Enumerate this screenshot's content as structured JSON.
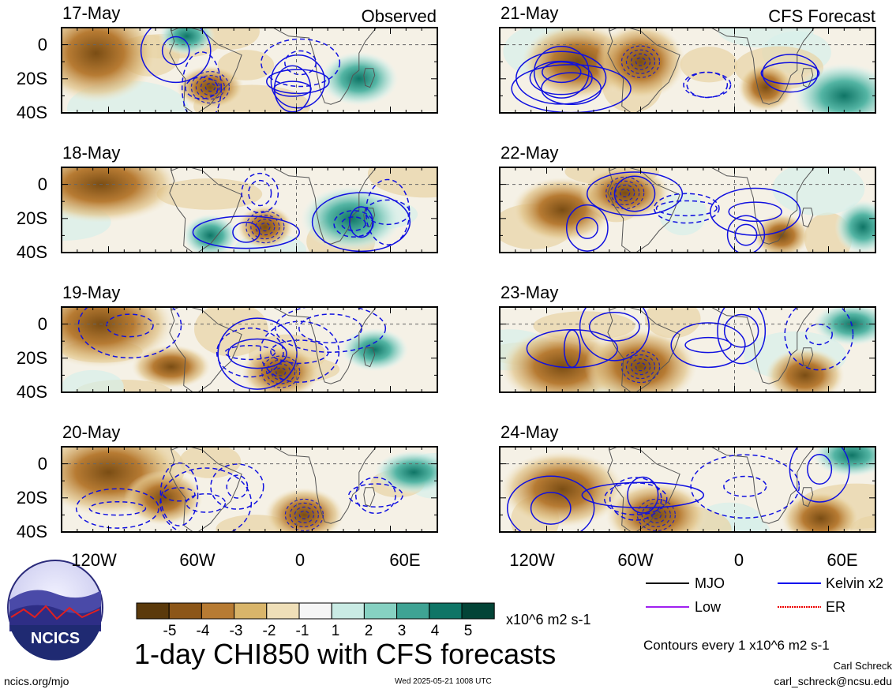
{
  "chart_data": {
    "type": "heatmap",
    "title": "1-day CHI850 with CFS forecasts",
    "variable": "CHI850",
    "units": "x10^6 m2 s-1",
    "contour_note": "Contours every 1 x10^6 m2 s-1",
    "columns": [
      {
        "label": "Observed",
        "panels": [
          "17-May",
          "18-May",
          "19-May",
          "20-May"
        ]
      },
      {
        "label": "CFS Forecast",
        "panels": [
          "21-May",
          "22-May",
          "23-May",
          "24-May"
        ]
      }
    ],
    "lat_ticks": [
      "0",
      "20S",
      "40S"
    ],
    "lat_range": [
      -40,
      10
    ],
    "lon_ticks": [
      "120W",
      "60W",
      "0",
      "60E"
    ],
    "lon_range": [
      -150,
      90
    ],
    "colorbar": {
      "ticks": [
        "-5",
        "-4",
        "-3",
        "-2",
        "-1",
        "1",
        "2",
        "3",
        "4",
        "5"
      ],
      "colors": [
        "#5b3a0c",
        "#8c5618",
        "#b77b33",
        "#d9b56a",
        "#efdfb8",
        "#f6f6f6",
        "#c9ebe4",
        "#86d1c2",
        "#3fa394",
        "#0f7566",
        "#034437"
      ]
    },
    "legend": [
      {
        "label": "MJO",
        "color": "#000000"
      },
      {
        "label": "Kelvin x2",
        "color": "#0000ee"
      },
      {
        "label": "Low",
        "color": "#a020f0"
      },
      {
        "label": "ER",
        "color": "#ee0000"
      }
    ]
  },
  "footer": {
    "url": "ncics.org/mjo",
    "timestamp": "Wed 2025-05-21 1008 UTC",
    "author": "Carl Schreck",
    "email": "carl_schreck@ncsu.edu",
    "logo_text": "NCICS"
  }
}
